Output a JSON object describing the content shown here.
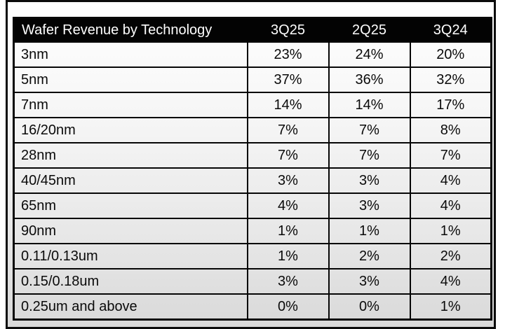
{
  "chart_data": {
    "type": "table",
    "title": "Wafer Revenue by Technology",
    "columns": [
      "3Q25",
      "2Q25",
      "3Q24"
    ],
    "categories": [
      "3nm",
      "5nm",
      "7nm",
      "16/20nm",
      "28nm",
      "40/45nm",
      "65nm",
      "90nm",
      "0.11/0.13um",
      "0.15/0.18um",
      "0.25um and above"
    ],
    "series": [
      {
        "name": "3Q25",
        "values": [
          23,
          37,
          14,
          7,
          7,
          3,
          4,
          1,
          1,
          3,
          0
        ]
      },
      {
        "name": "2Q25",
        "values": [
          24,
          36,
          14,
          7,
          7,
          3,
          3,
          1,
          2,
          3,
          0
        ]
      },
      {
        "name": "3Q24",
        "values": [
          20,
          32,
          17,
          8,
          7,
          4,
          4,
          1,
          2,
          4,
          1
        ]
      }
    ],
    "unit": "%",
    "layout": {
      "header_style": "black-bar",
      "grid": true,
      "value_alignment": "center"
    }
  },
  "colors": {
    "header_bg": "#030303",
    "header_text": "#ffffff",
    "border": "#060606",
    "cell_text": "#0a0a0a",
    "background_top": "#ffffff",
    "background_bottom": "#d9d9d9"
  },
  "table": {
    "header": {
      "title": "Wafer Revenue by Technology",
      "cols": [
        "3Q25",
        "2Q25",
        "3Q24"
      ]
    },
    "rows": [
      {
        "tech": "3nm",
        "values": [
          "23%",
          "24%",
          "20%"
        ]
      },
      {
        "tech": "5nm",
        "values": [
          "37%",
          "36%",
          "32%"
        ]
      },
      {
        "tech": "7nm",
        "values": [
          "14%",
          "14%",
          "17%"
        ]
      },
      {
        "tech": "16/20nm",
        "values": [
          "7%",
          "7%",
          "8%"
        ]
      },
      {
        "tech": "28nm",
        "values": [
          "7%",
          "7%",
          "7%"
        ]
      },
      {
        "tech": "40/45nm",
        "values": [
          "3%",
          "3%",
          "4%"
        ]
      },
      {
        "tech": "65nm",
        "values": [
          "4%",
          "3%",
          "4%"
        ]
      },
      {
        "tech": "90nm",
        "values": [
          "1%",
          "1%",
          "1%"
        ]
      },
      {
        "tech": "0.11/0.13um",
        "values": [
          "1%",
          "2%",
          "2%"
        ]
      },
      {
        "tech": "0.15/0.18um",
        "values": [
          "3%",
          "3%",
          "4%"
        ]
      },
      {
        "tech": "0.25um and above",
        "values": [
          "0%",
          "0%",
          "1%"
        ]
      }
    ]
  }
}
